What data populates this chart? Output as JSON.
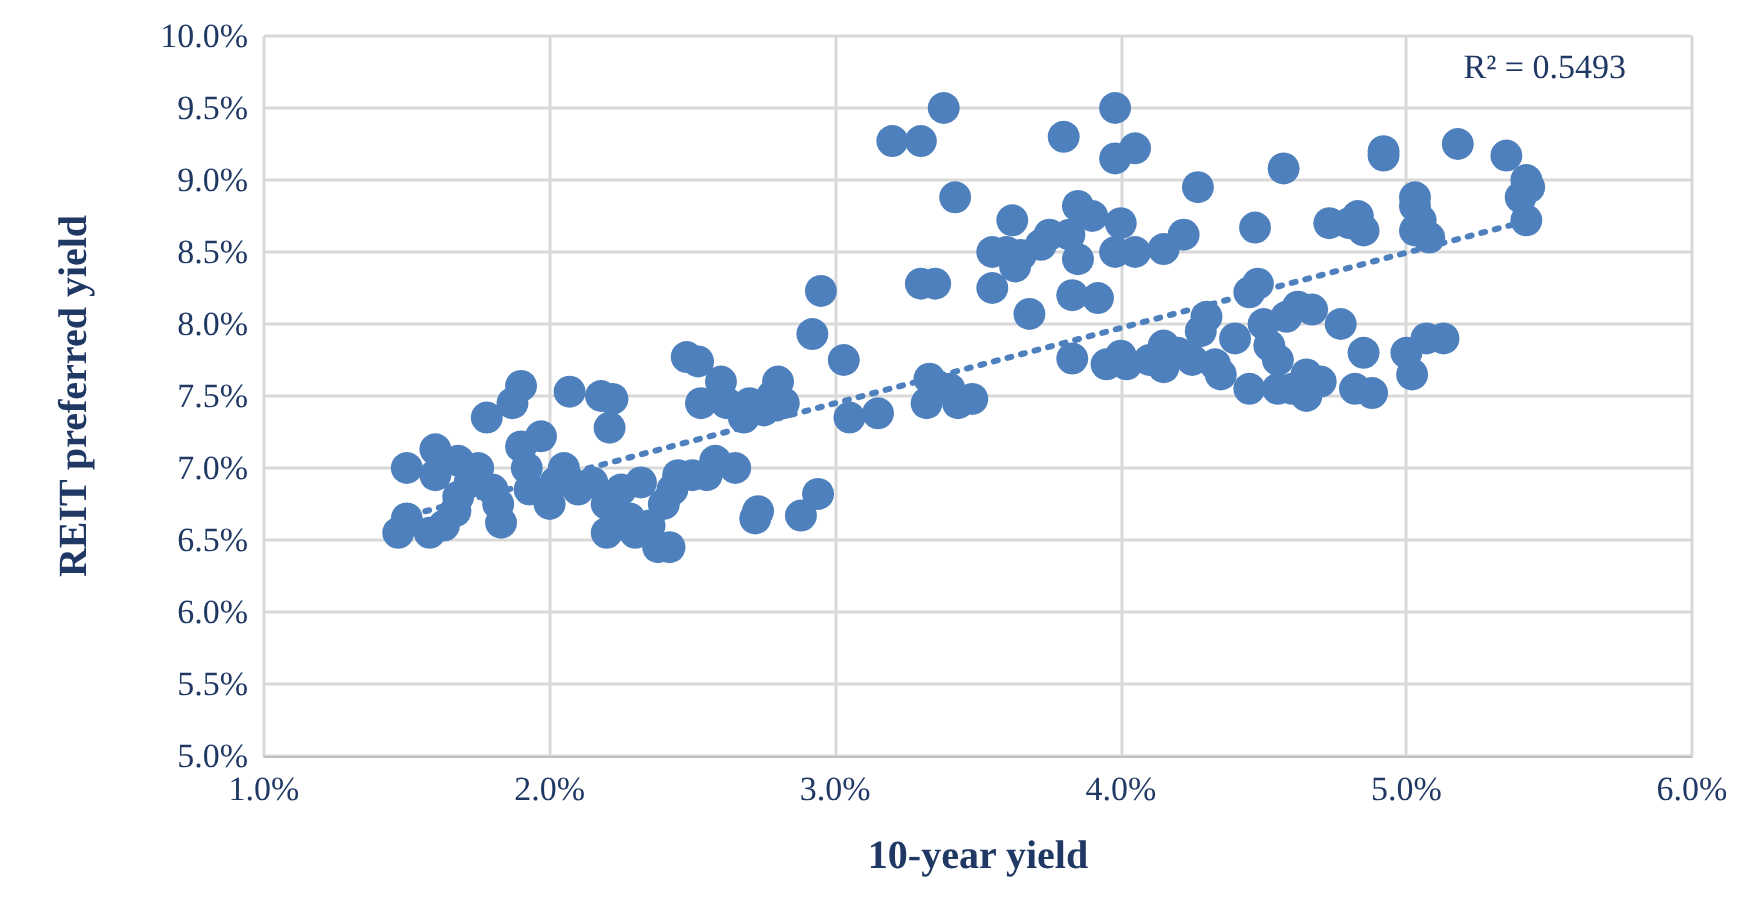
{
  "chart_data": {
    "type": "scatter",
    "xlabel": "10-year yield",
    "ylabel": "REIT preferred yield",
    "annotations": [
      "R² = 0.5493"
    ],
    "xlim": [
      1,
      6
    ],
    "ylim": [
      5,
      10
    ],
    "xticks": [
      {
        "value": 1,
        "label": "1.0%"
      },
      {
        "value": 2,
        "label": "2.0%"
      },
      {
        "value": 3,
        "label": "3.0%"
      },
      {
        "value": 4,
        "label": "4.0%"
      },
      {
        "value": 5,
        "label": "5.0%"
      },
      {
        "value": 6,
        "label": "6.0%"
      }
    ],
    "yticks": [
      {
        "value": 5,
        "label": "5.0%"
      },
      {
        "value": 5.5,
        "label": "5.5%"
      },
      {
        "value": 6,
        "label": "6.0%"
      },
      {
        "value": 6.5,
        "label": "6.5%"
      },
      {
        "value": 7,
        "label": "7.0%"
      },
      {
        "value": 7.5,
        "label": "7.5%"
      },
      {
        "value": 8,
        "label": "8.0%"
      },
      {
        "value": 8.5,
        "label": "8.5%"
      },
      {
        "value": 9,
        "label": "9.0%"
      },
      {
        "value": 9.5,
        "label": "9.5%"
      },
      {
        "value": 10,
        "label": "10.0%"
      }
    ],
    "grid": true,
    "marker": "circle",
    "series": [
      {
        "color": "#4e80bd",
        "x": [
          1.47,
          1.5,
          1.5,
          1.58,
          1.6,
          1.6,
          1.63,
          1.67,
          1.68,
          1.68,
          1.72,
          1.75,
          1.78,
          1.8,
          1.82,
          1.83,
          1.87,
          1.9,
          1.9,
          1.92,
          1.93,
          1.97,
          2.0,
          2.02,
          2.05,
          2.07,
          2.1,
          2.15,
          2.18,
          2.2,
          2.2,
          2.21,
          2.22,
          2.25,
          2.28,
          2.3,
          2.32,
          2.35,
          2.38,
          2.4,
          2.42,
          2.43,
          2.45,
          2.48,
          2.5,
          2.52,
          2.53,
          2.55,
          2.58,
          2.6,
          2.62,
          2.65,
          2.68,
          2.7,
          2.72,
          2.73,
          2.75,
          2.78,
          2.8,
          2.82,
          2.88,
          2.92,
          2.94,
          2.95,
          3.03,
          3.05,
          3.15,
          3.2,
          3.3,
          3.3,
          3.32,
          3.33,
          3.35,
          3.38,
          3.4,
          3.42,
          3.43,
          3.48,
          3.55,
          3.55,
          3.6,
          3.62,
          3.63,
          3.65,
          3.68,
          3.72,
          3.75,
          3.8,
          3.82,
          3.83,
          3.83,
          3.85,
          3.85,
          3.9,
          3.92,
          3.95,
          3.98,
          3.98,
          3.98,
          4.0,
          4.0,
          4.02,
          4.05,
          4.05,
          4.1,
          4.15,
          4.15,
          4.15,
          4.2,
          4.22,
          4.25,
          4.27,
          4.28,
          4.3,
          4.33,
          4.35,
          4.4,
          4.45,
          4.45,
          4.47,
          4.48,
          4.5,
          4.52,
          4.55,
          4.55,
          4.57,
          4.58,
          4.6,
          4.62,
          4.65,
          4.65,
          4.67,
          4.7,
          4.73,
          4.77,
          4.8,
          4.82,
          4.83,
          4.85,
          4.85,
          4.88,
          4.92,
          4.92,
          5.0,
          5.02,
          5.03,
          5.03,
          5.03,
          5.05,
          5.07,
          5.08,
          5.13,
          5.18,
          5.35,
          5.4,
          5.42,
          5.42,
          5.43
        ],
        "values": [
          6.55,
          6.65,
          7.0,
          6.55,
          6.95,
          7.13,
          6.6,
          6.7,
          6.8,
          7.05,
          6.9,
          7.0,
          7.35,
          6.85,
          6.75,
          6.62,
          7.45,
          7.15,
          7.57,
          7.0,
          6.85,
          7.22,
          6.75,
          6.9,
          7.0,
          7.53,
          6.85,
          6.9,
          7.5,
          6.75,
          6.55,
          7.28,
          7.48,
          6.85,
          6.65,
          6.55,
          6.9,
          6.6,
          6.45,
          6.75,
          6.45,
          6.85,
          6.95,
          7.77,
          6.95,
          7.74,
          7.45,
          6.95,
          7.05,
          7.6,
          7.45,
          7.0,
          7.35,
          7.45,
          6.65,
          6.7,
          7.4,
          7.5,
          7.6,
          7.45,
          6.67,
          7.93,
          6.82,
          8.23,
          7.75,
          7.35,
          7.38,
          9.27,
          9.27,
          8.28,
          7.45,
          7.62,
          8.28,
          9.5,
          7.55,
          8.88,
          7.45,
          7.48,
          8.5,
          8.25,
          8.5,
          8.72,
          8.4,
          8.48,
          8.07,
          8.55,
          8.62,
          9.3,
          8.62,
          8.2,
          7.76,
          8.45,
          8.82,
          8.75,
          8.18,
          7.72,
          9.5,
          8.5,
          9.15,
          8.7,
          7.78,
          7.72,
          9.22,
          8.5,
          7.75,
          8.52,
          7.85,
          7.7,
          7.8,
          8.62,
          7.75,
          8.95,
          7.95,
          8.05,
          7.72,
          7.65,
          7.9,
          7.55,
          8.22,
          8.67,
          8.28,
          8.0,
          7.85,
          7.75,
          7.55,
          9.08,
          8.05,
          7.55,
          8.12,
          7.65,
          7.5,
          8.1,
          7.6,
          8.7,
          8.0,
          8.7,
          7.55,
          8.75,
          7.8,
          8.65,
          7.52,
          9.2,
          9.17,
          7.8,
          7.65,
          8.65,
          8.82,
          8.88,
          8.72,
          7.9,
          8.6,
          7.9,
          9.25,
          9.17,
          8.88,
          9.0,
          8.72,
          8.95
        ]
      },
      {
        "type": "line",
        "color": "#4e80bd",
        "x": [
          1.47,
          5.43
        ],
        "values": [
          6.65,
          8.72
        ],
        "line_style": "dotted",
        "marker": "none"
      }
    ]
  }
}
